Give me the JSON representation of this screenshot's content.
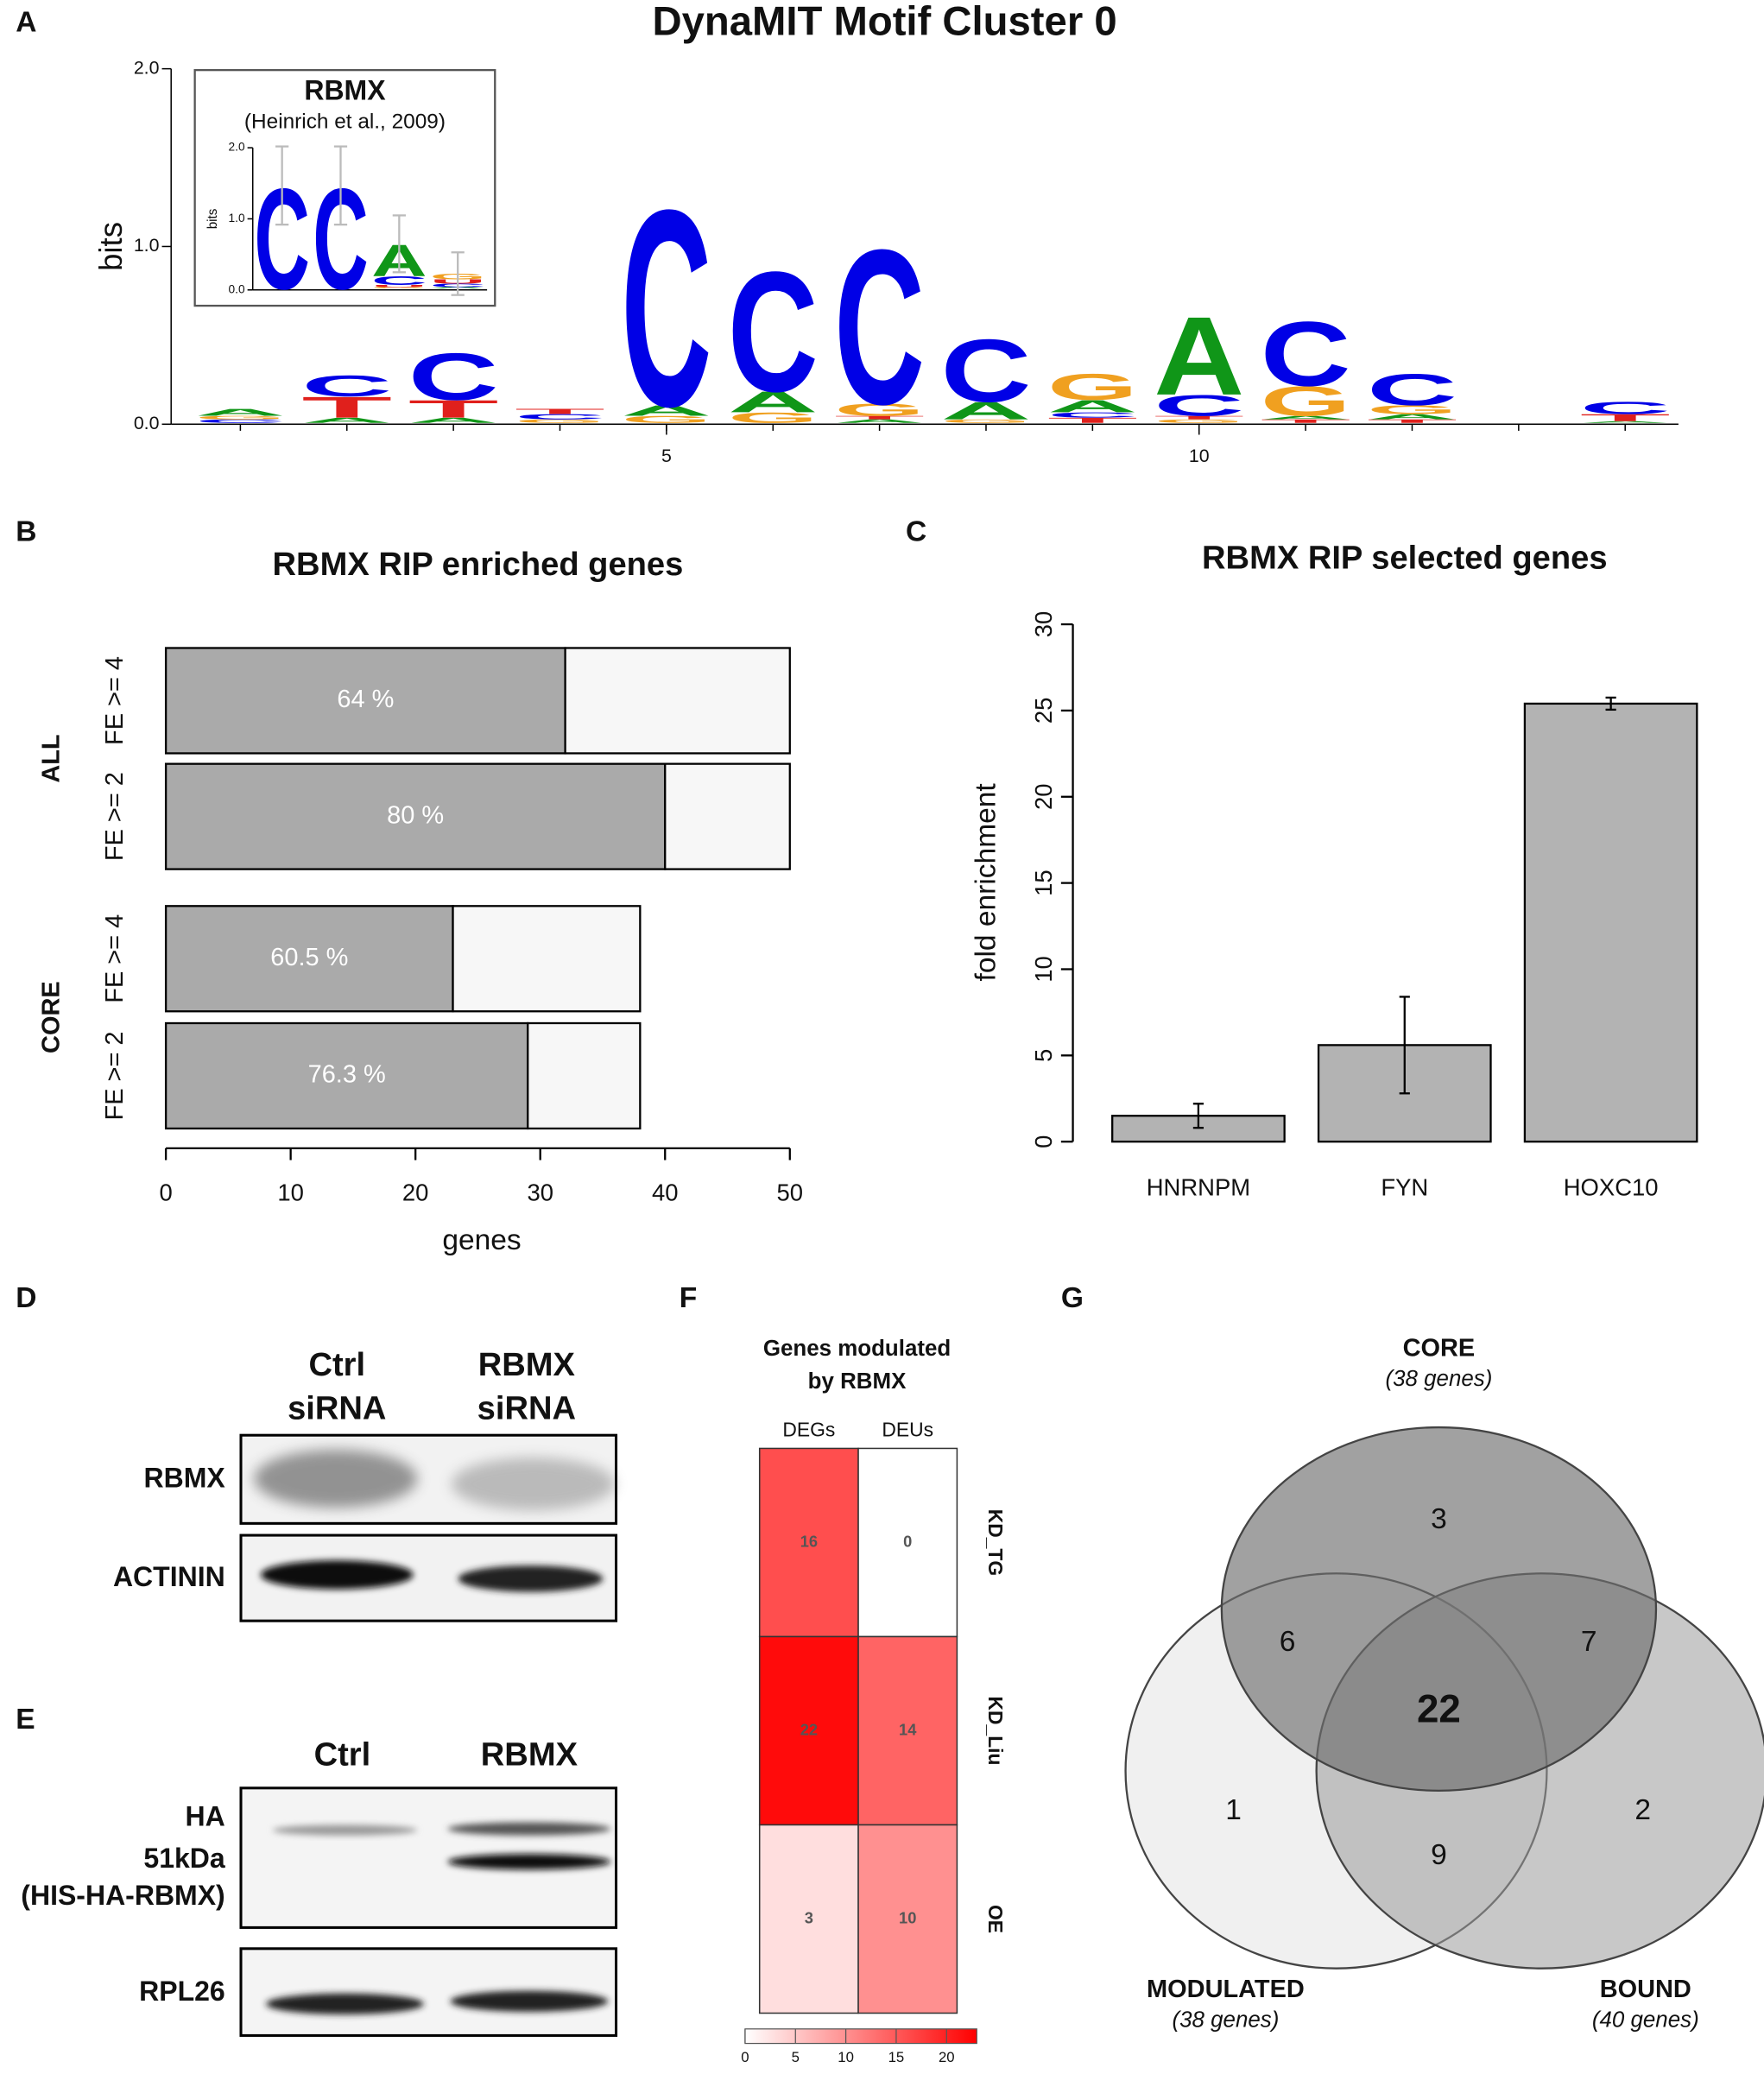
{
  "panel_labels": [
    "A",
    "B",
    "C",
    "D",
    "E",
    "F",
    "G"
  ],
  "chart_data": [
    {
      "type": "logo",
      "title": "DynaMIT Motif Cluster 0",
      "ylabel": "bits",
      "ylim": [
        0,
        2
      ],
      "yticks": [
        {
          "value": 0,
          "label": "0.0"
        },
        {
          "value": 1,
          "label": "1.0"
        },
        {
          "value": 2,
          "label": "2.0"
        }
      ],
      "xlim": [
        0.35,
        14.5
      ],
      "xticks": [
        5,
        10
      ],
      "x": [
        1,
        2,
        3,
        4,
        5,
        6,
        7,
        8,
        9,
        10,
        11,
        12,
        13,
        14
      ],
      "colors": {
        "A": "#109618",
        "C": "#0000e6",
        "G": "#f0a020",
        "T": "#e0201c",
        "U": "#e0201c"
      },
      "letters": [
        [
          [
            "C",
            0.02
          ],
          [
            "G",
            0.02
          ],
          [
            "A",
            0.04
          ]
        ],
        [
          [
            "A",
            0.03
          ],
          [
            "T",
            0.12
          ],
          [
            "C",
            0.12
          ]
        ],
        [
          [
            "A",
            0.03
          ],
          [
            "T",
            0.1
          ],
          [
            "C",
            0.27
          ]
        ],
        [
          [
            "G",
            0.02
          ],
          [
            "C",
            0.03
          ],
          [
            "T",
            0.03
          ]
        ],
        [
          [
            "G",
            0.04
          ],
          [
            "A",
            0.06
          ],
          [
            "C",
            1.13
          ]
        ],
        [
          [
            "G",
            0.06
          ],
          [
            "A",
            0.12
          ],
          [
            "C",
            0.69
          ]
        ],
        [
          [
            "A",
            0.02
          ],
          [
            "T",
            0.02
          ],
          [
            "G",
            0.07
          ],
          [
            "C",
            0.89
          ]
        ],
        [
          [
            "G",
            0.02
          ],
          [
            "A",
            0.1
          ],
          [
            "C",
            0.36
          ]
        ],
        [
          [
            "T",
            0.03
          ],
          [
            "C",
            0.03
          ],
          [
            "A",
            0.07
          ],
          [
            "G",
            0.15
          ]
        ],
        [
          [
            "G",
            0.02
          ],
          [
            "T",
            0.02
          ],
          [
            "C",
            0.12
          ],
          [
            "A",
            0.45
          ]
        ],
        [
          [
            "T",
            0.02
          ],
          [
            "A",
            0.02
          ],
          [
            "G",
            0.17
          ],
          [
            "C",
            0.37
          ]
        ],
        [
          [
            "T",
            0.02
          ],
          [
            "A",
            0.03
          ],
          [
            "G",
            0.05
          ],
          [
            "C",
            0.18
          ]
        ],
        [],
        [
          [
            "A",
            0.01
          ],
          [
            "T",
            0.04
          ],
          [
            "C",
            0.07
          ]
        ]
      ]
    },
    {
      "type": "logo",
      "title": "RBMX",
      "subtitle": "(Heinrich et al., 2009)",
      "ylabel": "bits",
      "ylim": [
        0,
        2
      ],
      "yticks": [
        {
          "value": 0,
          "label": "0.0"
        },
        {
          "value": 1,
          "label": "1.0"
        },
        {
          "value": 2,
          "label": "2.0"
        }
      ],
      "xlim": [
        0.5,
        4.5
      ],
      "x": [
        1,
        2,
        3,
        4
      ],
      "colors": {
        "A": "#109618",
        "C": "#0000e6",
        "G": "#f0a020",
        "T": "#e0201c",
        "U": "#e0201c"
      },
      "letters": [
        [
          [
            "C",
            1.45
          ]
        ],
        [
          [
            "C",
            1.45
          ]
        ],
        [
          [
            "G",
            0.02
          ],
          [
            "U",
            0.03
          ],
          [
            "C",
            0.13
          ],
          [
            "A",
            0.45
          ]
        ],
        [
          [
            "A",
            0.02
          ],
          [
            "C",
            0.05
          ],
          [
            "U",
            0.06
          ],
          [
            "G",
            0.08
          ]
        ]
      ],
      "errors": [
        0.55,
        0.55,
        0.4,
        0.3
      ]
    },
    {
      "type": "hbar",
      "title": "RBMX RIP enriched genes",
      "xlabel": "genes",
      "groups": [
        "ALL",
        "CORE"
      ],
      "categories": [
        "FE >= 4",
        "FE >= 2",
        "FE >= 4",
        "FE >= 2"
      ],
      "series": [
        {
          "color": "#aaaaaa",
          "values": [
            32,
            40,
            23,
            29
          ]
        },
        {
          "color": "#f7f7f7",
          "values": [
            18,
            10,
            15,
            9
          ]
        }
      ],
      "annotations": [
        "64 %",
        "80 %",
        "60.5 %",
        "76.3 %"
      ],
      "xlim": [
        0,
        50
      ],
      "xticks": [
        0,
        10,
        20,
        30,
        40,
        50
      ]
    },
    {
      "type": "bar",
      "title": "RBMX RIP selected genes",
      "ylabel": "fold enrichment",
      "categories": [
        "HNRNPM",
        "FYN",
        "HOXC10"
      ],
      "values": [
        1.5,
        5.6,
        25.4
      ],
      "errors": [
        0.7,
        2.8,
        0.35
      ],
      "color": "#b3b3b3",
      "ylim": [
        0,
        30
      ],
      "yticks": [
        0,
        5,
        10,
        15,
        20,
        25,
        30
      ]
    },
    {
      "type": "heatmap",
      "title": [
        "Genes modulated",
        "by RBMX"
      ],
      "columns": [
        "DEGs",
        "DEUs"
      ],
      "rows": [
        "KD_TG",
        "KD_Liu",
        "OE"
      ],
      "values": [
        [
          16,
          0
        ],
        [
          22,
          14
        ],
        [
          3,
          10
        ]
      ],
      "zlim": [
        0,
        23
      ],
      "zticks": [
        0,
        5,
        10,
        15,
        20
      ],
      "colors": [
        "#ffffff",
        "#ff0000"
      ]
    }
  ],
  "blots": [
    {
      "columns": [
        [
          "Ctrl",
          "siRNA"
        ],
        [
          "RBMX",
          "siRNA"
        ]
      ],
      "rows": [
        [
          "RBMX"
        ],
        [
          "ACTININ"
        ]
      ]
    },
    {
      "columns": [
        [
          "Ctrl"
        ],
        [
          "RBMX"
        ]
      ],
      "rows": [
        [
          "HA",
          "51kDa",
          "(HIS-HA-RBMX)"
        ],
        [
          "RPL26"
        ]
      ]
    }
  ],
  "venn": {
    "sets": [
      {
        "name": "CORE",
        "size": "(38 genes)"
      },
      {
        "name": "MODULATED",
        "size": "(38 genes)"
      },
      {
        "name": "BOUND",
        "size": "(40 genes)"
      }
    ],
    "regions": [
      3,
      6,
      7,
      22,
      1,
      2,
      9
    ]
  }
}
